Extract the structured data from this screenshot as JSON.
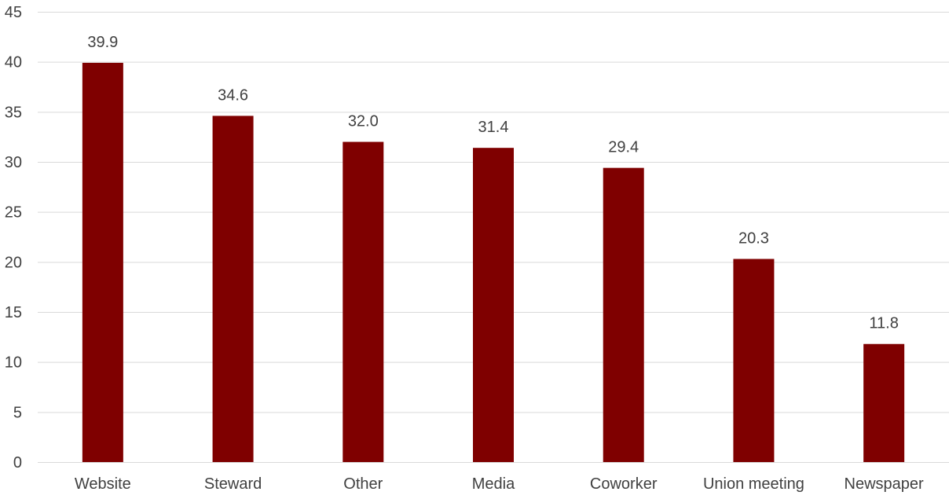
{
  "chart_data": {
    "type": "bar",
    "categories": [
      "Website",
      "Steward",
      "Other",
      "Media",
      "Coworker",
      "Union meeting",
      "Newspaper"
    ],
    "values": [
      39.9,
      34.6,
      32.0,
      31.4,
      29.4,
      20.3,
      11.8
    ],
    "data_labels": [
      "39.9",
      "34.6",
      "32.0",
      "31.4",
      "29.4",
      "20.3",
      "11.8"
    ],
    "y_ticks": [
      0,
      5,
      10,
      15,
      20,
      25,
      30,
      35,
      40,
      45
    ],
    "ylim": [
      0,
      45
    ],
    "title": "",
    "xlabel": "",
    "ylabel": "",
    "grid": true,
    "legend": "none",
    "bar_color": "#7f0000",
    "grid_color": "#d9d9d9",
    "text_color": "#404040"
  }
}
